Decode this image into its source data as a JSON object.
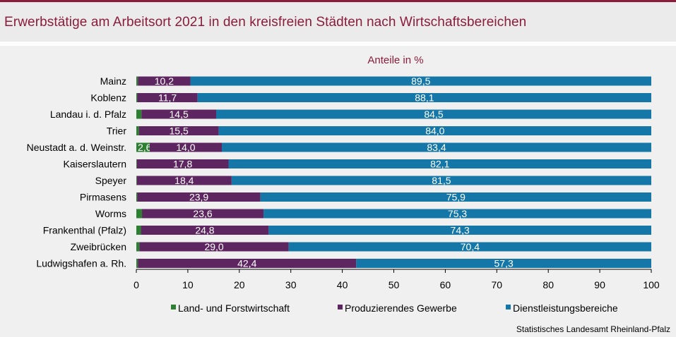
{
  "header": {
    "title": "Erwerbstätige am Arbeitsort 2021 in den kreisfreien Städten nach Wirtschaftsbereichen"
  },
  "source": "Statistisches Landesamt Rheinland-Pfalz",
  "colors": {
    "agri": "#2d7f32",
    "prod": "#5e2660",
    "serv": "#1577a7",
    "title": "#8b1c3c"
  },
  "chart_data": {
    "type": "bar",
    "orientation": "horizontal",
    "stacked": true,
    "subtitle": "Anteile in %",
    "xlim": [
      0,
      100
    ],
    "xticks": [
      "0",
      "10",
      "20",
      "30",
      "40",
      "50",
      "60",
      "70",
      "80",
      "90",
      "100"
    ],
    "categories": [
      "Mainz",
      "Koblenz",
      "Landau i. d. Pfalz",
      "Trier",
      "Neustadt a. d. Weinstr.",
      "Kaiserslautern",
      "Speyer",
      "Pirmasens",
      "Worms",
      "Frankenthal (Pfalz)",
      "Zweibrücken",
      "Ludwigshafen a. Rh."
    ],
    "series": [
      {
        "name": "Land- und Forstwirtschaft",
        "values": [
          0.3,
          0.2,
          1.0,
          0.5,
          2.6,
          0.1,
          0.1,
          0.2,
          1.1,
          0.9,
          0.6,
          0.3
        ],
        "labels": [
          "",
          "",
          "",
          "",
          "2,6",
          "",
          "",
          "",
          "",
          "",
          "",
          ""
        ]
      },
      {
        "name": "Produzierendes Gewerbe",
        "values": [
          10.2,
          11.7,
          14.5,
          15.5,
          14.0,
          17.8,
          18.4,
          23.9,
          23.6,
          24.8,
          29.0,
          42.4
        ],
        "labels": [
          "10,2",
          "11,7",
          "14,5",
          "15,5",
          "14,0",
          "17,8",
          "18,4",
          "23,9",
          "23,6",
          "24,8",
          "29,0",
          "42,4"
        ]
      },
      {
        "name": "Dienstleistungsbereiche",
        "values": [
          89.5,
          88.1,
          84.5,
          84.0,
          83.4,
          82.1,
          81.5,
          75.9,
          75.3,
          74.3,
          70.4,
          57.3
        ],
        "labels": [
          "89,5",
          "88,1",
          "84,5",
          "84,0",
          "83,4",
          "82,1",
          "81,5",
          "75,9",
          "75,3",
          "74,3",
          "70,4",
          "57,3"
        ]
      }
    ],
    "legend_position": "bottom"
  }
}
